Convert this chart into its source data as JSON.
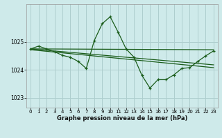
{
  "bg_color": "#ceeaea",
  "grid_color": "#aecece",
  "line_color": "#1a5c1a",
  "xlabel": "Graphe pression niveau de la mer (hPa)",
  "xlim": [
    -0.5,
    23.5
  ],
  "ylim": [
    1022.65,
    1026.35
  ],
  "yticks": [
    1023,
    1024,
    1025
  ],
  "xticks": [
    0,
    1,
    2,
    3,
    4,
    5,
    6,
    7,
    8,
    9,
    10,
    11,
    12,
    13,
    14,
    15,
    16,
    17,
    18,
    19,
    20,
    21,
    22,
    23
  ],
  "series1_x": [
    0,
    1,
    2,
    3,
    4,
    5,
    6,
    7,
    8,
    9,
    10,
    11,
    12,
    13,
    14,
    15,
    16,
    17,
    18,
    19,
    20,
    21,
    22,
    23
  ],
  "series1_y": [
    1024.75,
    1024.85,
    1024.75,
    1024.65,
    1024.52,
    1024.45,
    1024.3,
    1024.05,
    1025.05,
    1025.65,
    1025.9,
    1025.35,
    1024.75,
    1024.45,
    1023.8,
    1023.35,
    1023.65,
    1023.65,
    1023.82,
    1024.05,
    1024.08,
    1024.3,
    1024.5,
    1024.68
  ],
  "trend1_x": [
    0,
    23
  ],
  "trend1_y": [
    1024.75,
    1024.72
  ],
  "trend2_x": [
    0,
    23
  ],
  "trend2_y": [
    1024.75,
    1024.18
  ],
  "trend3_x": [
    0,
    23
  ],
  "trend3_y": [
    1024.72,
    1024.08
  ]
}
